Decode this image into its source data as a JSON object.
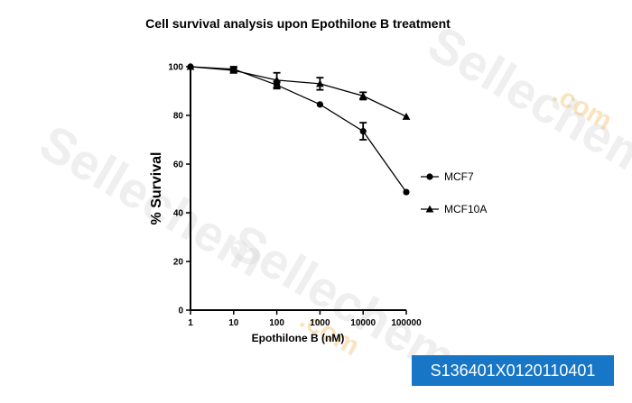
{
  "chart_data": {
    "type": "line",
    "title": "Cell survival analysis upon Epothilone B treatment",
    "xlabel": "Epothilone B (nM)",
    "ylabel": "% Survival",
    "xscale": "log",
    "xlim": [
      1,
      100000
    ],
    "ylim": [
      0,
      100
    ],
    "x_ticks": [
      "1",
      "10",
      "100",
      "1000",
      "10000",
      "100000"
    ],
    "y_ticks": [
      "0",
      "20",
      "40",
      "60",
      "80",
      "100"
    ],
    "legend_position": "right",
    "series": [
      {
        "name": "MCF7",
        "marker": "circle",
        "x": [
          1,
          10,
          100,
          1000,
          10000,
          100000
        ],
        "y": [
          100,
          99,
          92.5,
          84.5,
          73.5,
          48.5
        ],
        "err": [
          0,
          1,
          1.5,
          0,
          3.5,
          0
        ]
      },
      {
        "name": "MCF10A",
        "marker": "triangle",
        "x": [
          1,
          10,
          100,
          1000,
          10000,
          100000
        ],
        "y": [
          100,
          98.5,
          94.5,
          93,
          88,
          79.5
        ],
        "err": [
          0,
          1,
          3,
          2.5,
          1.5,
          0
        ]
      }
    ]
  },
  "watermark": {
    "text": "Sellechem",
    "suffix": ".com",
    "color": "#d4d4d4",
    "suffix_color": "#f2b24a"
  },
  "catalog_code": {
    "text": "S136401X0120110401",
    "background": "#1776c6"
  }
}
